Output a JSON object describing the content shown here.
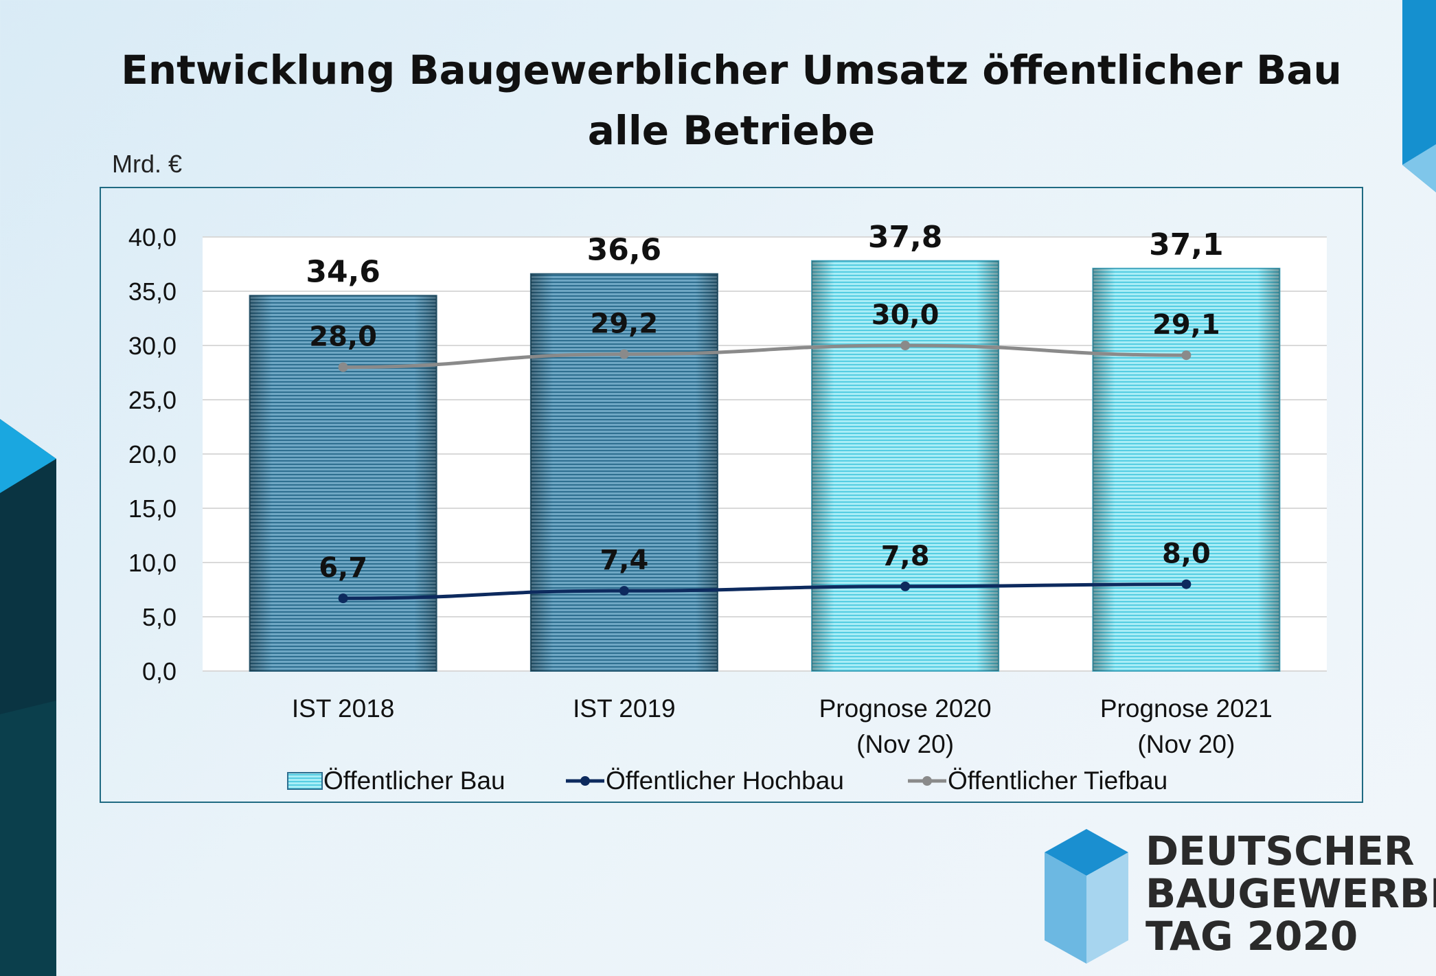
{
  "title_line1": "Entwicklung Baugewerblicher Umsatz öffentlicher Bau",
  "title_line2": "alle Betriebe",
  "unit": "Mrd. €",
  "logo": {
    "line1": "DEUTSCHER",
    "line2": "BAUGEWERBE",
    "line3": "TAG 2020"
  },
  "colors": {
    "bar_actual": "#5b96b4",
    "bar_forecast": "#8ee3f0",
    "hochbau_line": "#0d2a5e",
    "tiefbau_line": "#8a8a8a",
    "accent_blue": "#1a8fd0"
  },
  "chart_data": {
    "type": "bar",
    "categories": [
      [
        "IST 2018"
      ],
      [
        "IST 2019"
      ],
      [
        "Prognose 2020",
        "(Nov 20)"
      ],
      [
        "Prognose 2021",
        "(Nov 20)"
      ]
    ],
    "ylim": [
      0,
      40
    ],
    "yticks": [
      "0,0",
      "5,0",
      "10,0",
      "15,0",
      "20,0",
      "25,0",
      "30,0",
      "35,0",
      "40,0"
    ],
    "grid": true,
    "legend_position": "bottom",
    "series": [
      {
        "name": "Öffentlicher Bau",
        "kind": "bar",
        "values": [
          34.6,
          36.6,
          37.8,
          37.1
        ],
        "labels": [
          "34,6",
          "36,6",
          "37,8",
          "37,1"
        ]
      },
      {
        "name": "Öffentlicher Hochbau",
        "kind": "line",
        "values": [
          6.7,
          7.4,
          7.8,
          8.0
        ],
        "labels": [
          "6,7",
          "7,4",
          "7,8",
          "8,0"
        ]
      },
      {
        "name": "Öffentlicher Tiefbau",
        "kind": "line",
        "values": [
          28.0,
          29.2,
          30.0,
          29.1
        ],
        "labels": [
          "28,0",
          "29,2",
          "30,0",
          "29,1"
        ]
      }
    ]
  }
}
